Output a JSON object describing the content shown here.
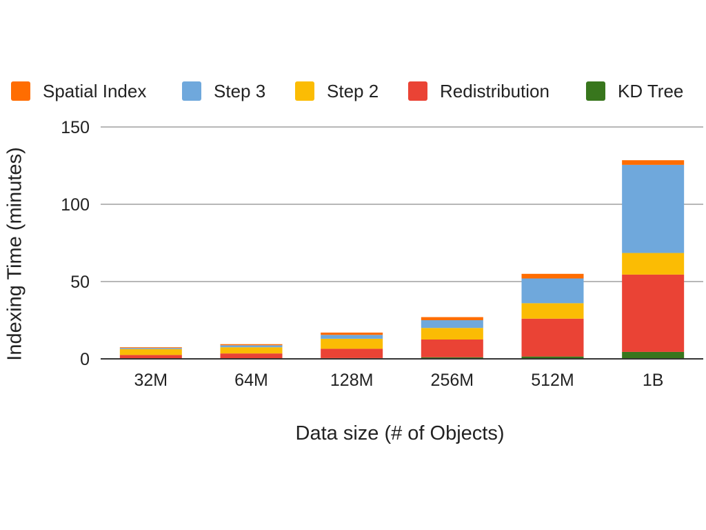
{
  "chart_data": {
    "type": "bar",
    "stacked": true,
    "categories": [
      "32M",
      "64M",
      "128M",
      "256M",
      "512M",
      "1B"
    ],
    "series": [
      {
        "name": "KD Tree",
        "color": "#38761d",
        "values": [
          0.3,
          0.4,
          0.5,
          1,
          1.5,
          4.5
        ]
      },
      {
        "name": "Redistribution",
        "color": "#ea4335",
        "values": [
          2.2,
          3.1,
          6,
          11.5,
          24.5,
          50
        ]
      },
      {
        "name": "Step 2",
        "color": "#fbbc04",
        "values": [
          3.8,
          4,
          6.5,
          7.5,
          10,
          14
        ]
      },
      {
        "name": "Step 3",
        "color": "#6fa8dc",
        "values": [
          0.7,
          1.3,
          2.5,
          5,
          16,
          57
        ]
      },
      {
        "name": "Spatial Index",
        "color": "#ff6d01",
        "values": [
          0.5,
          0.7,
          1.5,
          2,
          3,
          3
        ]
      }
    ],
    "legend": {
      "position": "top",
      "order": [
        "Spatial Index",
        "Step 3",
        "Step 2",
        "Redistribution",
        "KD Tree"
      ]
    },
    "title": "",
    "xlabel": "Data size (# of Objects)",
    "ylabel": "Indexing Time (minutes)",
    "ylim": [
      0,
      150
    ],
    "yticks": [
      "0",
      "50",
      "100",
      "150"
    ],
    "grid": true
  }
}
